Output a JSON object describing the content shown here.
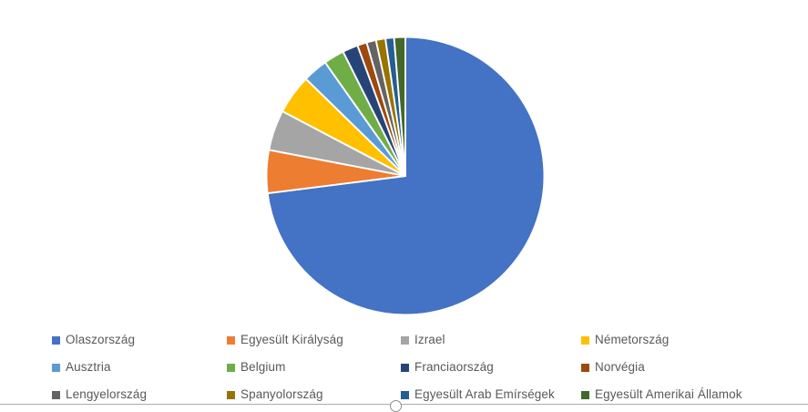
{
  "chart_data": {
    "type": "pie",
    "title": "",
    "categories": [
      "Olaszország",
      "Egyesült Királyság",
      "Izrael",
      "Németország",
      "Ausztria",
      "Belgium",
      "Franciaország",
      "Norvégia",
      "Lengyelország",
      "Spanyolország",
      "Egyesült Arab Emírségek",
      "Egyesült Amerikai Államok"
    ],
    "values": [
      73.0,
      5.0,
      4.7,
      4.6,
      2.9,
      2.4,
      1.8,
      1.1,
      1.1,
      1.1,
      1.0,
      1.3
    ],
    "values_unit": "percent-estimated-from-slice-angles",
    "colors": [
      "#4472C4",
      "#ED7D31",
      "#A5A5A5",
      "#FFC000",
      "#5B9BD5",
      "#70AD47",
      "#264478",
      "#9E480E",
      "#636363",
      "#997300",
      "#255E91",
      "#43682B"
    ],
    "start_angle_deg": 0,
    "direction": "clockwise",
    "slice_border_color": "#FFFFFF",
    "legend_position": "bottom",
    "legend_columns": 4,
    "data_labels": "none",
    "grid": "off"
  },
  "style": {
    "background_color": "#FFFFFF",
    "legend_text_color": "#595959",
    "frame_border_color": "#ABABAB",
    "handle_border_color": "#8F8F8F",
    "handle_fill_color": "#FFFFFF"
  }
}
